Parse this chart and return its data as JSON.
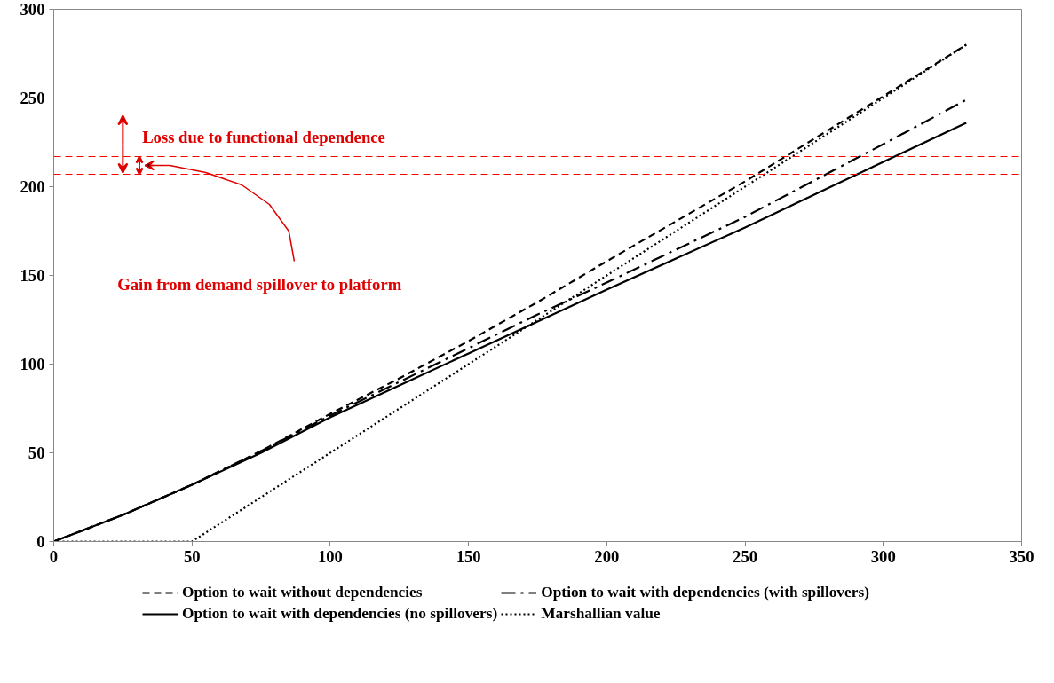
{
  "chart_data": {
    "type": "line",
    "xlim": [
      0,
      350
    ],
    "xticks": [
      0,
      50,
      100,
      150,
      200,
      250,
      300,
      350
    ],
    "ylim": [
      0,
      300
    ],
    "yticks": [
      0,
      50,
      100,
      150,
      200,
      250,
      300
    ],
    "grid": false,
    "legend": "bottom",
    "series": [
      {
        "name": "Option to wait without dependencies",
        "color": "#000000",
        "line_style": "dashed",
        "x": [
          0,
          25,
          50,
          75,
          100,
          125,
          150,
          175,
          200,
          250,
          300,
          330
        ],
        "values": [
          0,
          15,
          32,
          51,
          72,
          92,
          113,
          135,
          158,
          203,
          251,
          280
        ]
      },
      {
        "name": "Option to wait with dependencies (no spillovers)",
        "color": "#000000",
        "line_style": "solid",
        "x": [
          0,
          25,
          50,
          75,
          100,
          125,
          150,
          175,
          200,
          250,
          300,
          330
        ],
        "values": [
          0,
          15,
          32,
          50,
          70,
          88,
          106,
          124,
          142,
          177,
          214,
          236
        ]
      },
      {
        "name": "Option to wait with dependencies (with spillovers)",
        "color": "#000000",
        "line_style": "dashdot",
        "x": [
          0,
          25,
          50,
          75,
          100,
          125,
          150,
          175,
          200,
          250,
          300,
          330
        ],
        "values": [
          0,
          15,
          32,
          51,
          71,
          90,
          109,
          128,
          146,
          183,
          224,
          249
        ]
      },
      {
        "name": "Marshallian value",
        "color": "#000000",
        "line_style": "dotted",
        "x": [
          0,
          50,
          330
        ],
        "values": [
          0,
          0,
          280
        ]
      }
    ],
    "ref_lines": [
      {
        "axis": "y",
        "value": 241,
        "color": "#ff0000",
        "line_style": "dashed"
      },
      {
        "axis": "y",
        "value": 217,
        "color": "#ff0000",
        "line_style": "dashed"
      },
      {
        "axis": "y",
        "value": 207,
        "color": "#ff0000",
        "line_style": "dashed"
      }
    ],
    "annotations": [
      {
        "text": "Loss due to functional dependence",
        "x": 25,
        "y": 241
      },
      "Gain from demand spillover  to platform"
    ]
  }
}
